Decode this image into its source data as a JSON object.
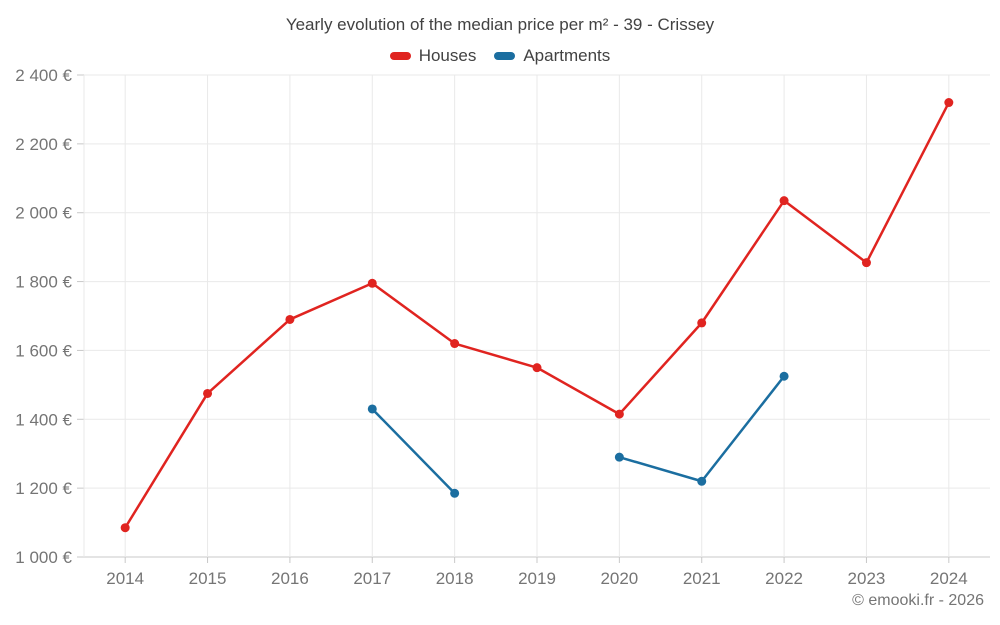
{
  "chart_data": {
    "type": "line",
    "title": "Yearly evolution of the median price per m² - 39 - Crissey",
    "categories": [
      2014,
      2015,
      2016,
      2017,
      2018,
      2019,
      2020,
      2021,
      2022,
      2023,
      2024
    ],
    "series": [
      {
        "name": "Houses",
        "color": "#e02420",
        "values": [
          1085,
          1475,
          1690,
          1795,
          1620,
          1550,
          1415,
          1680,
          2035,
          1855,
          2320
        ]
      },
      {
        "name": "Apartments",
        "color": "#1b6ea0",
        "values": [
          null,
          null,
          null,
          1430,
          1185,
          null,
          1290,
          1220,
          1525,
          null,
          null
        ]
      }
    ],
    "ylabel": "",
    "xlabel": "",
    "ylim": [
      1000,
      2400
    ],
    "ytick_step": 200,
    "ytick_suffix": " €",
    "grid": true,
    "legend_position": "top"
  },
  "footer": {
    "credit": "© emooki.fr - 2026"
  },
  "colors": {
    "grid": "#e9e9e9",
    "axis_line": "#c8c8c8",
    "tick": "#c8c8c8",
    "axis_text": "#757575",
    "title_text": "#424242"
  }
}
